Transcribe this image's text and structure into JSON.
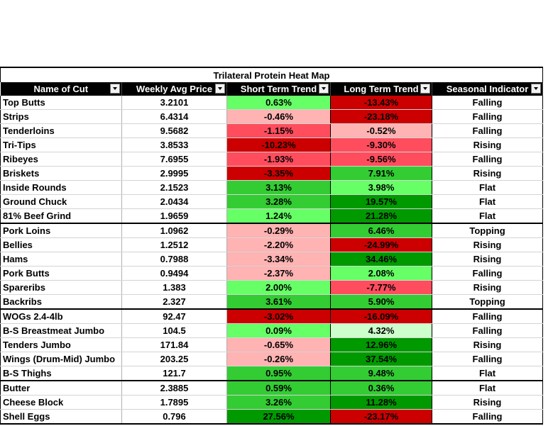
{
  "title": "Trilateral Protein Heat Map",
  "columns": [
    "Name of Cut",
    "Weekly Avg Price",
    "Short Term Trend",
    "Long Term Trend",
    "Seasonal Indicator"
  ],
  "heat_colors": {
    "light_green": "#66ff66",
    "mid_green": "#33cc33",
    "dark_green": "#009900",
    "pale_green": "#ccffcc",
    "light_red": "#ffb3b3",
    "mid_red": "#ff4d5e",
    "dark_red": "#cc0000"
  },
  "rows": [
    {
      "name": "Top Butts",
      "price": "3.2101",
      "short": "0.63%",
      "short_color": "#66ff66",
      "long": "-13.43%",
      "long_color": "#cc0000",
      "seasonal": "Falling"
    },
    {
      "name": "Strips",
      "price": "6.4314",
      "short": "-0.46%",
      "short_color": "#ffb3b3",
      "long": "-23.18%",
      "long_color": "#cc0000",
      "seasonal": "Falling"
    },
    {
      "name": "Tenderloins",
      "price": "9.5682",
      "short": "-1.15%",
      "short_color": "#ff4d5e",
      "long": "-0.52%",
      "long_color": "#ffb3b3",
      "seasonal": "Falling"
    },
    {
      "name": "Tri-Tips",
      "price": "3.8533",
      "short": "-10.23%",
      "short_color": "#cc0000",
      "long": "-9.30%",
      "long_color": "#ff4d5e",
      "seasonal": "Rising"
    },
    {
      "name": "Ribeyes",
      "price": "7.6955",
      "short": "-1.93%",
      "short_color": "#ff4d5e",
      "long": "-9.56%",
      "long_color": "#ff4d5e",
      "seasonal": "Falling"
    },
    {
      "name": "Briskets",
      "price": "2.9995",
      "short": "-3.35%",
      "short_color": "#cc0000",
      "long": "7.91%",
      "long_color": "#33cc33",
      "seasonal": "Rising"
    },
    {
      "name": "Inside Rounds",
      "price": "2.1523",
      "short": "3.13%",
      "short_color": "#33cc33",
      "long": "3.98%",
      "long_color": "#66ff66",
      "seasonal": "Flat"
    },
    {
      "name": "Ground Chuck",
      "price": "2.0434",
      "short": "3.28%",
      "short_color": "#33cc33",
      "long": "19.57%",
      "long_color": "#009900",
      "seasonal": "Flat"
    },
    {
      "name": "81% Beef Grind",
      "price": "1.9659",
      "short": "1.24%",
      "short_color": "#66ff66",
      "long": "21.28%",
      "long_color": "#009900",
      "seasonal": "Flat"
    },
    {
      "name": "Pork Loins",
      "price": "1.0962",
      "short": "-0.29%",
      "short_color": "#ffb3b3",
      "long": "6.46%",
      "long_color": "#33cc33",
      "seasonal": "Topping",
      "group_break": true
    },
    {
      "name": "Bellies",
      "price": "1.2512",
      "short": "-2.20%",
      "short_color": "#ffb3b3",
      "long": "-24.99%",
      "long_color": "#cc0000",
      "seasonal": "Rising"
    },
    {
      "name": "Hams",
      "price": "0.7988",
      "short": "-3.34%",
      "short_color": "#ffb3b3",
      "long": "34.46%",
      "long_color": "#009900",
      "seasonal": "Rising"
    },
    {
      "name": "Pork Butts",
      "price": "0.9494",
      "short": "-2.37%",
      "short_color": "#ffb3b3",
      "long": "2.08%",
      "long_color": "#66ff66",
      "seasonal": "Falling"
    },
    {
      "name": "Spareribs",
      "price": "1.383",
      "short": "2.00%",
      "short_color": "#66ff66",
      "long": "-7.77%",
      "long_color": "#ff4d5e",
      "seasonal": "Rising"
    },
    {
      "name": "Backribs",
      "price": "2.327",
      "short": "3.61%",
      "short_color": "#33cc33",
      "long": "5.90%",
      "long_color": "#33cc33",
      "seasonal": "Topping"
    },
    {
      "name": "WOGs 2.4-4lb",
      "price": "92.47",
      "short": "-3.02%",
      "short_color": "#cc0000",
      "long": "-16.09%",
      "long_color": "#cc0000",
      "seasonal": "Falling",
      "group_break": true
    },
    {
      "name": "B-S Breastmeat Jumbo",
      "price": "104.5",
      "short": "0.09%",
      "short_color": "#66ff66",
      "long": "4.32%",
      "long_color": "#ccffcc",
      "seasonal": "Falling"
    },
    {
      "name": "Tenders Jumbo",
      "price": "171.84",
      "short": "-0.65%",
      "short_color": "#ffb3b3",
      "long": "12.96%",
      "long_color": "#009900",
      "seasonal": "Rising"
    },
    {
      "name": "Wings (Drum-Mid) Jumbo",
      "price": "203.25",
      "short": "-0.26%",
      "short_color": "#ffb3b3",
      "long": "37.54%",
      "long_color": "#009900",
      "seasonal": "Falling"
    },
    {
      "name": "B-S Thighs",
      "price": "121.7",
      "short": "0.95%",
      "short_color": "#33cc33",
      "long": "9.48%",
      "long_color": "#33cc33",
      "seasonal": "Flat"
    },
    {
      "name": "Butter",
      "price": "2.3885",
      "short": "0.59%",
      "short_color": "#33cc33",
      "long": "0.36%",
      "long_color": "#33cc33",
      "seasonal": "Flat",
      "group_break": true
    },
    {
      "name": "Cheese Block",
      "price": "1.7895",
      "short": "3.26%",
      "short_color": "#33cc33",
      "long": "11.28%",
      "long_color": "#009900",
      "seasonal": "Rising"
    },
    {
      "name": "Shell Eggs",
      "price": "0.796",
      "short": "27.56%",
      "short_color": "#009900",
      "long": "-23.17%",
      "long_color": "#cc0000",
      "seasonal": "Falling"
    }
  ]
}
